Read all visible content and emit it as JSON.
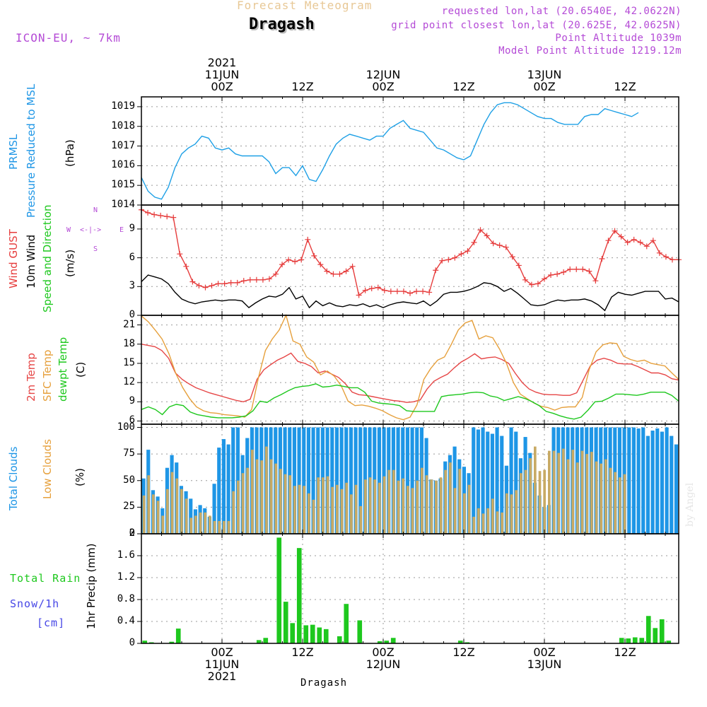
{
  "header": {
    "super_title": "Forecast Meteogram",
    "location": "Dragash",
    "model": "ICON-EU, ~ 7km",
    "requested": "requested lon,lat (20.6540E, 42.0622N)",
    "grid_point": "grid point closest lon,lat (20.625E, 42.0625N)",
    "point_altitude": "Point Altitude 1039m",
    "model_altitude": "Model Point Altitude 1219.12m",
    "footer": "Dragash",
    "watermark": "by Angel",
    "compass": {
      "n": "N",
      "s": "S",
      "w": "W",
      "e": "E",
      "arrow": "<-|->"
    }
  },
  "time_axis": {
    "top_labels": [
      {
        "h": 12,
        "lines": [
          "2021",
          "11JUN",
          "00Z"
        ]
      },
      {
        "h": 24,
        "lines": [
          "12Z"
        ]
      },
      {
        "h": 36,
        "lines": [
          "12JUN",
          "00Z"
        ]
      },
      {
        "h": 48,
        "lines": [
          "12Z"
        ]
      },
      {
        "h": 60,
        "lines": [
          "13JUN",
          "00Z"
        ]
      },
      {
        "h": 72,
        "lines": [
          "12Z"
        ]
      }
    ],
    "bottom_labels": [
      {
        "h": 12,
        "lines": [
          "00Z",
          "11JUN",
          "2021"
        ]
      },
      {
        "h": 24,
        "lines": [
          "12Z"
        ]
      },
      {
        "h": 36,
        "lines": [
          "00Z",
          "12JUN"
        ]
      },
      {
        "h": 48,
        "lines": [
          "12Z"
        ]
      },
      {
        "h": 60,
        "lines": [
          "00Z",
          "13JUN"
        ]
      },
      {
        "h": 72,
        "lines": [
          "12Z"
        ]
      }
    ]
  },
  "colors": {
    "pressure": "#1ea0e6",
    "gust": "#e63c3c",
    "wind": "#000000",
    "temp": "#e64646",
    "sfc": "#e6a03c",
    "dewpt": "#1ec81e",
    "total_cloud": "#1e96e6",
    "low_cloud": "#c8aa64",
    "rain": "#1ec81e",
    "snow": "#4646e6",
    "dir_title": "#1ec81e",
    "compass": "#b44ad6"
  },
  "chart_data": [
    {
      "type": "line",
      "name": "pressure",
      "titles": [
        "PRMSL",
        "Pressure Reduced to MSL"
      ],
      "unit": "(hPa)",
      "ylim": [
        1014,
        1019.5
      ],
      "yticks": [
        1014,
        1015,
        1016,
        1017,
        1018,
        1019
      ],
      "x_start": 0,
      "x_step": 1,
      "values": [
        1015.4,
        1014.7,
        1014.4,
        1014.3,
        1014.9,
        1015.9,
        1016.6,
        1016.9,
        1017.1,
        1017.5,
        1017.4,
        1016.9,
        1016.8,
        1016.9,
        1016.6,
        1016.5,
        1016.5,
        1016.5,
        1016.5,
        1016.2,
        1015.6,
        1015.9,
        1015.9,
        1015.5,
        1016.0,
        1015.3,
        1015.2,
        1015.8,
        1016.5,
        1017.1,
        1017.4,
        1017.6,
        1017.5,
        1017.4,
        1017.3,
        1017.5,
        1017.5,
        1017.9,
        1018.1,
        1018.3,
        1017.9,
        1017.8,
        1017.7,
        1017.3,
        1016.9,
        1016.8,
        1016.6,
        1016.4,
        1016.3,
        1016.5,
        1017.3,
        1018.1,
        1018.7,
        1019.1,
        1019.2,
        1019.2,
        1019.1,
        1018.9,
        1018.7,
        1018.5,
        1018.4,
        1018.4,
        1018.2,
        1018.1,
        1018.1,
        1018.1,
        1018.5,
        1018.6,
        1018.6,
        1018.9,
        1018.8,
        1018.7,
        1018.6,
        1018.5,
        1018.7
      ]
    },
    {
      "type": "line",
      "name": "wind",
      "titles": [
        "Wind GUST",
        "10m Wind",
        "Speed and Direction"
      ],
      "unit": "(m/s)",
      "ylim": [
        0,
        11.5
      ],
      "yticks": [
        0,
        3,
        6,
        9
      ],
      "series": [
        {
          "name": "Wind GUST",
          "markers": "plus",
          "values": [
            11.0,
            10.7,
            10.5,
            10.4,
            10.3,
            10.2,
            6.4,
            5.1,
            3.5,
            3.1,
            2.9,
            3.1,
            3.3,
            3.3,
            3.4,
            3.4,
            3.6,
            3.7,
            3.7,
            3.7,
            3.8,
            4.3,
            5.3,
            5.8,
            5.6,
            5.8,
            7.9,
            6.2,
            5.3,
            4.6,
            4.3,
            4.3,
            4.6,
            5.1,
            2.1,
            2.6,
            2.8,
            2.9,
            2.6,
            2.5,
            2.5,
            2.5,
            2.3,
            2.5,
            2.5,
            2.4,
            4.7,
            5.7,
            5.8,
            6.0,
            6.4,
            6.7,
            7.6,
            8.9,
            8.3,
            7.5,
            7.3,
            7.1,
            6.1,
            5.2,
            3.7,
            3.2,
            3.3,
            3.8,
            4.2,
            4.3,
            4.5,
            4.8,
            4.8,
            4.8,
            4.6,
            3.6,
            5.9,
            7.8,
            8.8,
            8.2,
            7.6,
            7.9,
            7.6,
            7.2,
            7.8,
            6.5,
            6.1,
            5.8,
            5.8
          ]
        },
        {
          "name": "10m Wind",
          "values": [
            3.5,
            4.2,
            4.0,
            3.8,
            3.3,
            2.4,
            1.7,
            1.4,
            1.2,
            1.4,
            1.5,
            1.6,
            1.5,
            1.6,
            1.6,
            1.5,
            0.8,
            1.3,
            1.7,
            2.0,
            1.9,
            2.2,
            2.9,
            1.7,
            2.0,
            0.8,
            1.5,
            1.0,
            1.3,
            1.0,
            0.9,
            1.1,
            1.0,
            1.2,
            0.9,
            1.1,
            0.8,
            1.1,
            1.3,
            1.4,
            1.3,
            1.2,
            1.5,
            1.0,
            1.5,
            2.2,
            2.4,
            2.4,
            2.5,
            2.7,
            3.0,
            3.4,
            3.3,
            3.0,
            2.5,
            2.8,
            2.3,
            1.7,
            1.1,
            1.0,
            1.1,
            1.4,
            1.6,
            1.5,
            1.6,
            1.6,
            1.7,
            1.5,
            1.1,
            0.5,
            1.9,
            2.4,
            2.2,
            2.1,
            2.3,
            2.5,
            2.5,
            2.5,
            1.7,
            1.8,
            1.4
          ]
        }
      ]
    },
    {
      "type": "line",
      "name": "temperature",
      "titles": [
        "2m Temp",
        "SFC Temp",
        "dewpt Temp"
      ],
      "unit": "(C)",
      "ylim": [
        5.5,
        22.5
      ],
      "yticks": [
        6,
        9,
        12,
        15,
        18,
        21
      ],
      "series": [
        {
          "name": "2m Temp",
          "values": [
            18.0,
            17.8,
            17.6,
            17.0,
            15.8,
            13.5,
            12.5,
            11.8,
            11.2,
            10.8,
            10.4,
            10.1,
            9.8,
            9.5,
            9.2,
            9.0,
            9.4,
            12.5,
            14.0,
            14.8,
            15.5,
            16.0,
            16.6,
            15.3,
            15.0,
            14.5,
            13.5,
            13.8,
            13.3,
            12.8,
            11.8,
            10.5,
            10.1,
            10.0,
            9.8,
            9.6,
            9.4,
            9.2,
            9.1,
            8.9,
            9.0,
            9.3,
            11.0,
            12.2,
            12.8,
            13.3,
            14.3,
            15.2,
            15.8,
            16.5,
            15.7,
            15.9,
            16.0,
            15.6,
            15.0,
            13.4,
            12.0,
            11.0,
            10.5,
            10.2,
            10.1,
            10.1,
            10.0,
            10.0,
            10.4,
            12.5,
            14.6,
            15.5,
            15.8,
            15.5,
            15.0,
            14.9,
            14.9,
            14.5,
            14.0,
            13.5,
            13.5,
            13.2,
            12.6,
            12.4
          ]
        },
        {
          "name": "SFC Temp",
          "values": [
            22.4,
            21.5,
            20.2,
            18.8,
            16.5,
            13.4,
            11.2,
            9.5,
            8.2,
            7.6,
            7.3,
            7.2,
            7.0,
            6.9,
            6.8,
            6.6,
            7.8,
            12.8,
            17.0,
            18.8,
            20.2,
            22.5,
            18.5,
            18.0,
            16.0,
            15.2,
            13.2,
            13.8,
            13.0,
            11.5,
            9.1,
            8.4,
            8.5,
            8.3,
            8.0,
            7.6,
            7.0,
            6.5,
            6.2,
            6.6,
            8.5,
            12.5,
            14.2,
            15.5,
            16.0,
            18.0,
            20.2,
            21.3,
            21.7,
            18.8,
            19.3,
            19.0,
            17.2,
            15.0,
            12.0,
            10.2,
            9.5,
            8.8,
            8.3,
            8.1,
            7.7,
            8.1,
            8.2,
            8.2,
            9.7,
            14.0,
            16.8,
            17.9,
            18.2,
            18.1,
            16.1,
            15.6,
            15.3,
            15.5,
            15.0,
            14.8,
            14.6,
            13.5,
            12.5
          ]
        },
        {
          "name": "dewpt Temp",
          "values": [
            7.8,
            8.2,
            7.8,
            7.0,
            8.2,
            8.6,
            8.4,
            7.4,
            7.0,
            6.8,
            6.6,
            6.5,
            6.5,
            6.5,
            6.6,
            6.8,
            7.6,
            9.1,
            8.9,
            9.6,
            10.1,
            10.7,
            11.2,
            11.4,
            11.5,
            11.8,
            11.3,
            11.4,
            11.6,
            11.4,
            11.2,
            11.2,
            10.5,
            9.1,
            8.8,
            8.7,
            8.6,
            8.4,
            7.6,
            7.5,
            7.5,
            7.5,
            7.5,
            9.8,
            10.0,
            10.1,
            10.2,
            10.4,
            10.5,
            10.4,
            9.9,
            9.7,
            9.2,
            9.5,
            9.8,
            9.5,
            9.0,
            8.4,
            7.5,
            7.2,
            6.8,
            6.5,
            6.3,
            6.6,
            7.7,
            9.0,
            9.1,
            9.6,
            10.2,
            10.2,
            10.1,
            10.0,
            10.2,
            10.5,
            10.5,
            10.5,
            10.0,
            9.1
          ]
        }
      ]
    },
    {
      "type": "bar",
      "name": "clouds",
      "titles": [
        "Total Clouds",
        "Low Clouds"
      ],
      "unit": "(%)",
      "ylim": [
        0,
        103
      ],
      "yticks": [
        0,
        25,
        50,
        75,
        100
      ],
      "series": [
        {
          "name": "Total Clouds",
          "values": [
            52,
            79,
            41,
            35,
            24,
            62,
            74,
            67,
            45,
            40,
            33,
            23,
            27,
            24,
            16,
            47,
            81,
            89,
            84,
            100,
            100,
            74,
            90,
            100,
            100,
            100,
            100,
            100,
            100,
            100,
            100,
            100,
            100,
            100,
            100,
            100,
            100,
            100,
            100,
            100,
            100,
            100,
            100,
            100,
            100,
            100,
            100,
            100,
            100,
            100,
            100,
            100,
            100,
            100,
            100,
            100,
            100,
            100,
            100,
            100,
            90,
            51,
            50,
            52,
            68,
            74,
            82,
            70,
            63,
            57,
            100,
            98,
            100,
            96,
            94,
            100,
            92,
            64,
            100,
            96,
            71,
            91,
            76,
            48,
            36,
            25,
            27,
            100,
            100,
            100,
            100,
            100,
            100,
            100,
            100,
            100,
            100,
            100,
            100,
            100,
            100,
            100,
            100,
            100,
            100,
            99,
            100,
            92,
            97,
            99,
            96,
            100,
            92,
            84
          ]
        },
        {
          "name": "Low Clouds",
          "values": [
            36,
            55,
            37,
            31,
            17,
            42,
            58,
            52,
            42,
            33,
            15,
            17,
            20,
            20,
            17,
            12,
            12,
            12,
            12,
            40,
            50,
            57,
            62,
            79,
            70,
            69,
            82,
            70,
            66,
            61,
            56,
            55,
            45,
            46,
            45,
            38,
            32,
            53,
            53,
            54,
            44,
            46,
            42,
            48,
            37,
            46,
            26,
            51,
            53,
            51,
            48,
            54,
            60,
            60,
            50,
            52,
            45,
            43,
            50,
            62,
            55,
            51,
            50,
            53,
            60,
            67,
            43,
            61,
            38,
            46,
            16,
            24,
            19,
            24,
            33,
            21,
            20,
            38,
            37,
            41,
            57,
            60,
            71,
            82,
            59,
            60,
            78,
            78,
            76,
            80,
            70,
            79,
            67,
            78,
            75,
            77,
            68,
            66,
            70,
            62,
            58,
            53,
            56
          ]
        }
      ]
    },
    {
      "type": "bar",
      "name": "precipitation",
      "titles": [
        "Total Rain",
        "Snow/1h",
        "[cm]"
      ],
      "unit": "1hr Precip (mm)",
      "ylim": [
        0,
        2.0
      ],
      "yticks": [
        0,
        0.4,
        0.8,
        1.2,
        1.6,
        2
      ],
      "series": [
        {
          "name": "Total Rain",
          "points": [
            [
              0.5,
              0.05
            ],
            [
              1.5,
              0.02
            ],
            [
              4.5,
              0.03
            ],
            [
              5.5,
              0.27
            ],
            [
              17.5,
              0.06
            ],
            [
              18.5,
              0.1
            ],
            [
              20.5,
              1.93
            ],
            [
              21.5,
              0.76
            ],
            [
              22.5,
              0.37
            ],
            [
              23.5,
              1.74
            ],
            [
              24.5,
              0.33
            ],
            [
              25.5,
              0.34
            ],
            [
              26.5,
              0.29
            ],
            [
              27.5,
              0.26
            ],
            [
              29.5,
              0.13
            ],
            [
              30.5,
              0.72
            ],
            [
              32.5,
              0.42
            ],
            [
              35.5,
              0.04
            ],
            [
              36.5,
              0.05
            ],
            [
              37.5,
              0.1
            ],
            [
              47.5,
              0.05
            ],
            [
              48.5,
              0.02
            ],
            [
              71.5,
              0.1
            ],
            [
              72.5,
              0.09
            ],
            [
              73.5,
              0.11
            ],
            [
              74.5,
              0.1
            ],
            [
              75.5,
              0.5
            ],
            [
              76.5,
              0.28
            ],
            [
              77.5,
              0.44
            ],
            [
              78.5,
              0.05
            ]
          ]
        }
      ]
    }
  ]
}
